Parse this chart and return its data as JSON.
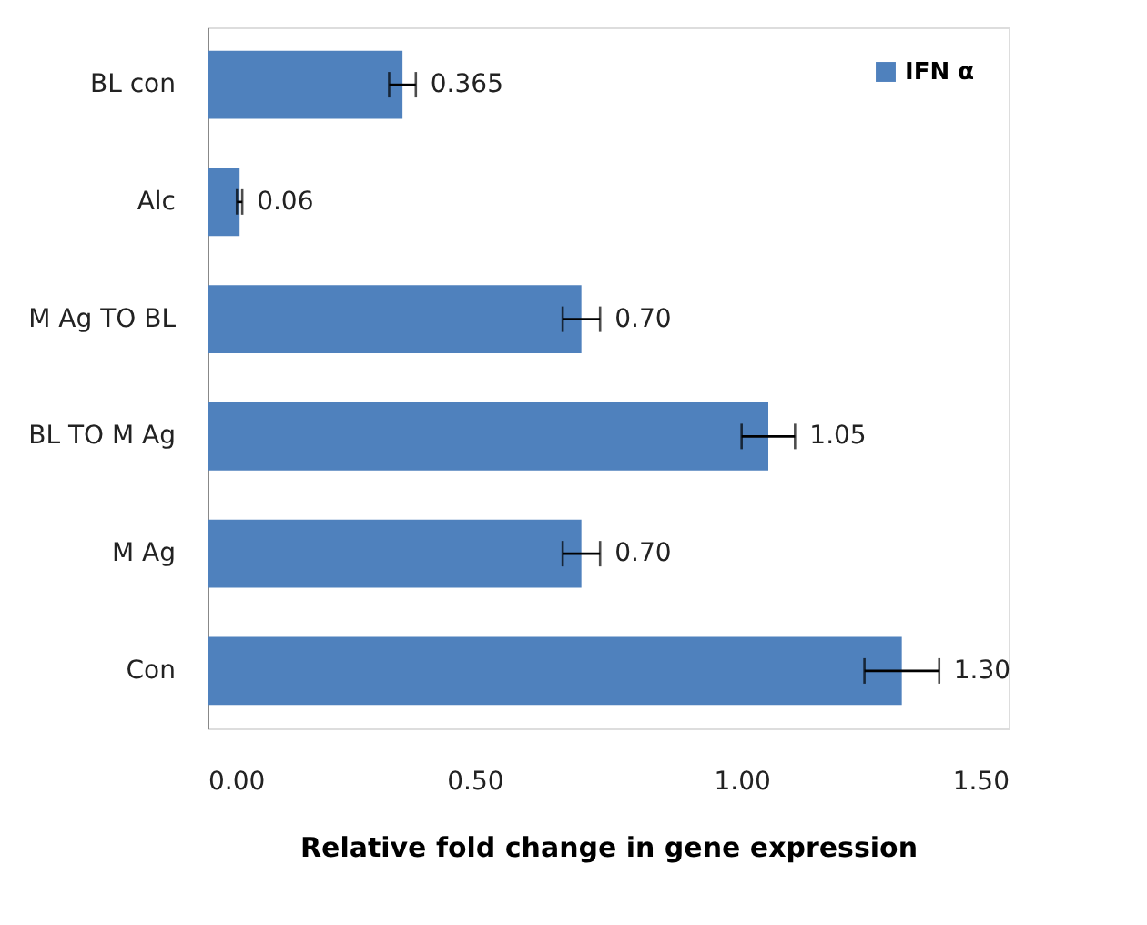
{
  "chart_data": {
    "type": "bar",
    "orientation": "horizontal",
    "xlabel": "Relative fold change in gene expression",
    "categories": [
      "BL con",
      "Alc",
      "M Ag TO BL",
      "BL TO M Ag",
      "M Ag",
      "Con"
    ],
    "series": [
      {
        "name": "IFN α",
        "color": "#4f81bd",
        "values": [
          0.365,
          0.06,
          0.7,
          1.05,
          0.7,
          1.3
        ],
        "errors": [
          0.025,
          0.005,
          0.035,
          0.05,
          0.035,
          0.07
        ],
        "value_labels": [
          "0.365",
          "0.06",
          "0.70",
          "1.05",
          "0.70",
          "1.30"
        ]
      }
    ],
    "xlim": [
      0,
      1.5
    ],
    "xticks": [
      {
        "value": 0,
        "label": "0.00"
      },
      {
        "value": 0.5,
        "label": "0.50"
      },
      {
        "value": 1.0,
        "label": "1.00"
      },
      {
        "value": 1.5,
        "label": "1.50"
      }
    ],
    "grid": false,
    "legend": "top right"
  }
}
